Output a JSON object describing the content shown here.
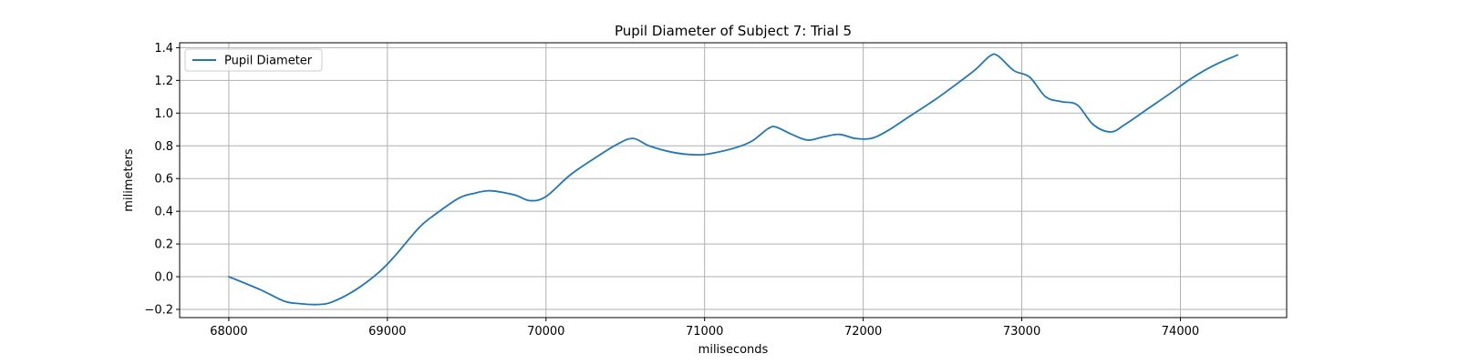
{
  "chart_data": {
    "type": "line",
    "title": "Pupil Diameter of Subject 7: Trial 5",
    "xlabel": "miliseconds",
    "ylabel": "milimeters",
    "xlim": [
      67690,
      74670
    ],
    "ylim": [
      -0.25,
      1.43
    ],
    "xticks": [
      68000,
      69000,
      70000,
      71000,
      72000,
      73000,
      74000
    ],
    "xtick_labels": [
      "68000",
      "69000",
      "70000",
      "71000",
      "72000",
      "73000",
      "74000"
    ],
    "yticks": [
      -0.2,
      0.0,
      0.2,
      0.4,
      0.6,
      0.8,
      1.0,
      1.2,
      1.4
    ],
    "ytick_labels": [
      "−0.2",
      "0.0",
      "0.2",
      "0.4",
      "0.6",
      "0.8",
      "1.0",
      "1.2",
      "1.4"
    ],
    "grid": true,
    "legend_position": "top-left",
    "series": [
      {
        "name": "Pupil Diameter",
        "color": "#1f77b4",
        "x": [
          68000,
          68200,
          68350,
          68450,
          68560,
          68650,
          68800,
          68950,
          69050,
          69200,
          69300,
          69450,
          69550,
          69650,
          69800,
          69900,
          70000,
          70150,
          70300,
          70450,
          70550,
          70650,
          70800,
          70950,
          71050,
          71200,
          71300,
          71400,
          71450,
          71550,
          71650,
          71750,
          71850,
          71950,
          72050,
          72150,
          72300,
          72450,
          72550,
          72700,
          72800,
          72850,
          72950,
          73050,
          73150,
          73250,
          73350,
          73450,
          73560,
          73650,
          73800,
          73950,
          74050,
          74150,
          74250,
          74360
        ],
        "values": [
          0.0,
          -0.08,
          -0.15,
          -0.165,
          -0.17,
          -0.155,
          -0.08,
          0.03,
          0.13,
          0.3,
          0.38,
          0.48,
          0.51,
          0.525,
          0.5,
          0.465,
          0.49,
          0.62,
          0.72,
          0.81,
          0.845,
          0.8,
          0.76,
          0.745,
          0.755,
          0.79,
          0.83,
          0.905,
          0.915,
          0.87,
          0.835,
          0.855,
          0.87,
          0.845,
          0.845,
          0.89,
          0.985,
          1.08,
          1.15,
          1.26,
          1.35,
          1.35,
          1.26,
          1.22,
          1.1,
          1.07,
          1.05,
          0.93,
          0.885,
          0.93,
          1.03,
          1.13,
          1.2,
          1.26,
          1.31,
          1.355
        ]
      }
    ]
  }
}
